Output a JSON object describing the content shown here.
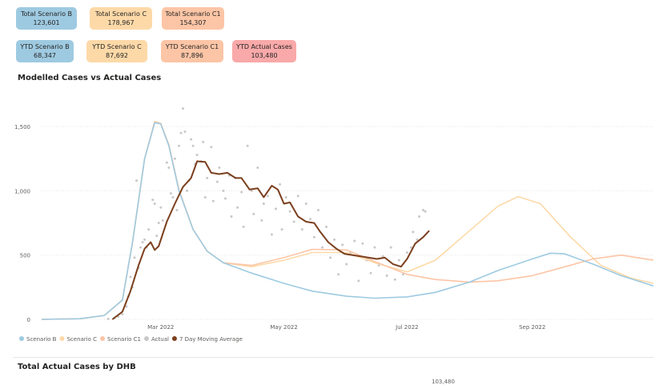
{
  "cards": [
    {
      "label": "Total Scenario B",
      "value": "123,601",
      "color": "#9ecae1",
      "row": 0
    },
    {
      "label": "Total Scenario C",
      "value": "178,967",
      "color": "#fdd9a8",
      "row": 0
    },
    {
      "label": "Total Scenario C1",
      "value": "154,307",
      "color": "#fcc5a6",
      "row": 0
    },
    {
      "label": "YTD Scenario B",
      "value": "68,347",
      "color": "#9ecae1",
      "row": 1
    },
    {
      "label": "YTD Scenario C",
      "value": "87,692",
      "color": "#fdd9a8",
      "row": 1
    },
    {
      "label": "YTD Scenario C1",
      "value": "87,896",
      "color": "#fcc5a6",
      "row": 1
    },
    {
      "label": "YTD Actual Cases",
      "value": "103,480",
      "color": "#f9a9a9",
      "row": 1
    }
  ],
  "chart_title": "Modelled Cases vs Actual Cases",
  "bottom_title": "Total Actual Cases by DHB",
  "bottom_value": "103,480",
  "chart_data": {
    "type": "line",
    "xlabel": "",
    "ylabel": "",
    "xlim": [
      "2022-01-01",
      "2022-10-31"
    ],
    "ylim": [
      0,
      1700
    ],
    "yticks": [
      0,
      500,
      1000,
      1500
    ],
    "ytick_labels": [
      "0",
      "500",
      "1,000",
      "1,500"
    ],
    "xticks": [
      "2022-03-01",
      "2022-05-01",
      "2022-07-01",
      "2022-09-01"
    ],
    "xtick_labels": [
      "Mar 2022",
      "May 2022",
      "Jul 2022",
      "Sep 2022"
    ],
    "legend_position": "bottom-left",
    "series": [
      {
        "name": "Scenario B",
        "color": "#9ecae1",
        "style": "line",
        "points": [
          [
            "2022-01-01",
            0
          ],
          [
            "2022-01-20",
            5
          ],
          [
            "2022-02-01",
            30
          ],
          [
            "2022-02-10",
            150
          ],
          [
            "2022-02-15",
            600
          ],
          [
            "2022-02-21",
            1250
          ],
          [
            "2022-02-26",
            1530
          ],
          [
            "2022-03-01",
            1520
          ],
          [
            "2022-03-05",
            1350
          ],
          [
            "2022-03-10",
            1000
          ],
          [
            "2022-03-17",
            700
          ],
          [
            "2022-03-24",
            530
          ],
          [
            "2022-04-01",
            440
          ],
          [
            "2022-04-15",
            360
          ],
          [
            "2022-05-01",
            280
          ],
          [
            "2022-05-15",
            220
          ],
          [
            "2022-06-01",
            180
          ],
          [
            "2022-06-15",
            165
          ],
          [
            "2022-07-01",
            175
          ],
          [
            "2022-07-15",
            210
          ],
          [
            "2022-08-01",
            290
          ],
          [
            "2022-08-15",
            380
          ],
          [
            "2022-09-01",
            470
          ],
          [
            "2022-09-10",
            515
          ],
          [
            "2022-09-17",
            510
          ],
          [
            "2022-10-01",
            430
          ],
          [
            "2022-10-15",
            340
          ],
          [
            "2022-10-31",
            260
          ]
        ]
      },
      {
        "name": "Scenario C",
        "color": "#fdd9a8",
        "style": "line",
        "points": [
          [
            "2022-01-01",
            0
          ],
          [
            "2022-01-20",
            5
          ],
          [
            "2022-02-01",
            30
          ],
          [
            "2022-02-10",
            150
          ],
          [
            "2022-02-15",
            600
          ],
          [
            "2022-02-21",
            1250
          ],
          [
            "2022-02-26",
            1540
          ],
          [
            "2022-03-01",
            1525
          ],
          [
            "2022-03-05",
            1360
          ],
          [
            "2022-03-10",
            1010
          ],
          [
            "2022-03-17",
            700
          ],
          [
            "2022-03-24",
            530
          ],
          [
            "2022-04-01",
            440
          ],
          [
            "2022-04-15",
            410
          ],
          [
            "2022-05-01",
            460
          ],
          [
            "2022-05-15",
            520
          ],
          [
            "2022-06-01",
            520
          ],
          [
            "2022-06-15",
            440
          ],
          [
            "2022-07-01",
            370
          ],
          [
            "2022-07-15",
            460
          ],
          [
            "2022-08-01",
            690
          ],
          [
            "2022-08-15",
            880
          ],
          [
            "2022-08-25",
            955
          ],
          [
            "2022-09-05",
            900
          ],
          [
            "2022-09-20",
            640
          ],
          [
            "2022-10-05",
            420
          ],
          [
            "2022-10-20",
            320
          ],
          [
            "2022-10-31",
            280
          ]
        ]
      },
      {
        "name": "Scenario C1",
        "color": "#fcc5a6",
        "style": "line",
        "points": [
          [
            "2022-01-01",
            0
          ],
          [
            "2022-01-20",
            5
          ],
          [
            "2022-02-01",
            30
          ],
          [
            "2022-02-10",
            150
          ],
          [
            "2022-02-15",
            600
          ],
          [
            "2022-02-21",
            1250
          ],
          [
            "2022-02-26",
            1535
          ],
          [
            "2022-03-01",
            1522
          ],
          [
            "2022-03-05",
            1355
          ],
          [
            "2022-03-10",
            1005
          ],
          [
            "2022-03-17",
            700
          ],
          [
            "2022-03-24",
            530
          ],
          [
            "2022-04-01",
            440
          ],
          [
            "2022-04-15",
            420
          ],
          [
            "2022-05-01",
            480
          ],
          [
            "2022-05-15",
            545
          ],
          [
            "2022-06-01",
            540
          ],
          [
            "2022-06-15",
            450
          ],
          [
            "2022-07-01",
            350
          ],
          [
            "2022-07-15",
            310
          ],
          [
            "2022-08-01",
            290
          ],
          [
            "2022-08-15",
            300
          ],
          [
            "2022-09-01",
            340
          ],
          [
            "2022-09-15",
            400
          ],
          [
            "2022-10-01",
            470
          ],
          [
            "2022-10-15",
            500
          ],
          [
            "2022-10-31",
            460
          ]
        ]
      },
      {
        "name": "7 Day Moving Average",
        "color": "#7b3f1e",
        "style": "line",
        "points": [
          [
            "2022-02-05",
            0
          ],
          [
            "2022-02-10",
            60
          ],
          [
            "2022-02-14",
            220
          ],
          [
            "2022-02-18",
            420
          ],
          [
            "2022-02-21",
            550
          ],
          [
            "2022-02-24",
            600
          ],
          [
            "2022-02-26",
            540
          ],
          [
            "2022-02-28",
            570
          ],
          [
            "2022-03-04",
            760
          ],
          [
            "2022-03-08",
            900
          ],
          [
            "2022-03-12",
            1030
          ],
          [
            "2022-03-16",
            1100
          ],
          [
            "2022-03-19",
            1230
          ],
          [
            "2022-03-23",
            1225
          ],
          [
            "2022-03-26",
            1140
          ],
          [
            "2022-03-30",
            1130
          ],
          [
            "2022-04-03",
            1140
          ],
          [
            "2022-04-07",
            1100
          ],
          [
            "2022-04-10",
            1100
          ],
          [
            "2022-04-14",
            1010
          ],
          [
            "2022-04-18",
            1020
          ],
          [
            "2022-04-21",
            950
          ],
          [
            "2022-04-25",
            1040
          ],
          [
            "2022-04-28",
            1010
          ],
          [
            "2022-05-01",
            900
          ],
          [
            "2022-05-04",
            910
          ],
          [
            "2022-05-08",
            800
          ],
          [
            "2022-05-12",
            760
          ],
          [
            "2022-05-16",
            750
          ],
          [
            "2022-05-19",
            680
          ],
          [
            "2022-05-23",
            600
          ],
          [
            "2022-05-27",
            550
          ],
          [
            "2022-05-31",
            510
          ],
          [
            "2022-06-04",
            500
          ],
          [
            "2022-06-08",
            490
          ],
          [
            "2022-06-12",
            480
          ],
          [
            "2022-06-16",
            470
          ],
          [
            "2022-06-20",
            480
          ],
          [
            "2022-06-24",
            430
          ],
          [
            "2022-06-28",
            410
          ],
          [
            "2022-07-01",
            470
          ],
          [
            "2022-07-05",
            590
          ],
          [
            "2022-07-09",
            640
          ],
          [
            "2022-07-12",
            690
          ]
        ]
      },
      {
        "name": "Actual",
        "color": "#c8c8c8",
        "style": "scatter",
        "points": [
          [
            "2022-02-03",
            4
          ],
          [
            "2022-02-06",
            10
          ],
          [
            "2022-02-08",
            20
          ],
          [
            "2022-02-10",
            40
          ],
          [
            "2022-02-12",
            100
          ],
          [
            "2022-02-13",
            180
          ],
          [
            "2022-02-14",
            330
          ],
          [
            "2022-02-15",
            250
          ],
          [
            "2022-02-16",
            480
          ],
          [
            "2022-02-17",
            1080
          ],
          [
            "2022-02-18",
            400
          ],
          [
            "2022-02-19",
            560
          ],
          [
            "2022-02-20",
            600
          ],
          [
            "2022-02-21",
            620
          ],
          [
            "2022-02-22",
            560
          ],
          [
            "2022-02-23",
            700
          ],
          [
            "2022-02-25",
            930
          ],
          [
            "2022-02-26",
            900
          ],
          [
            "2022-02-27",
            650
          ],
          [
            "2022-02-28",
            750
          ],
          [
            "2022-03-01",
            870
          ],
          [
            "2022-03-02",
            770
          ],
          [
            "2022-03-04",
            1220
          ],
          [
            "2022-03-05",
            1180
          ],
          [
            "2022-03-06",
            980
          ],
          [
            "2022-03-07",
            950
          ],
          [
            "2022-03-08",
            1250
          ],
          [
            "2022-03-09",
            850
          ],
          [
            "2022-03-10",
            1350
          ],
          [
            "2022-03-11",
            1450
          ],
          [
            "2022-03-12",
            1640
          ],
          [
            "2022-03-13",
            1460
          ],
          [
            "2022-03-14",
            1000
          ],
          [
            "2022-03-15",
            1080
          ],
          [
            "2022-03-16",
            1400
          ],
          [
            "2022-03-17",
            1350
          ],
          [
            "2022-03-18",
            1210
          ],
          [
            "2022-03-19",
            1280
          ],
          [
            "2022-03-21",
            1230
          ],
          [
            "2022-03-22",
            1380
          ],
          [
            "2022-03-23",
            950
          ],
          [
            "2022-03-24",
            1100
          ],
          [
            "2022-03-26",
            1340
          ],
          [
            "2022-03-27",
            920
          ],
          [
            "2022-03-29",
            1070
          ],
          [
            "2022-03-30",
            1180
          ],
          [
            "2022-04-01",
            1000
          ],
          [
            "2022-04-02",
            940
          ],
          [
            "2022-04-04",
            1120
          ],
          [
            "2022-04-05",
            800
          ],
          [
            "2022-04-07",
            1100
          ],
          [
            "2022-04-08",
            870
          ],
          [
            "2022-04-10",
            990
          ],
          [
            "2022-04-11",
            720
          ],
          [
            "2022-04-13",
            1350
          ],
          [
            "2022-04-15",
            1000
          ],
          [
            "2022-04-16",
            820
          ],
          [
            "2022-04-18",
            1180
          ],
          [
            "2022-04-20",
            770
          ],
          [
            "2022-04-21",
            900
          ],
          [
            "2022-04-23",
            960
          ],
          [
            "2022-04-25",
            660
          ],
          [
            "2022-04-27",
            860
          ],
          [
            "2022-04-29",
            1050
          ],
          [
            "2022-04-30",
            700
          ],
          [
            "2022-05-02",
            950
          ],
          [
            "2022-05-04",
            840
          ],
          [
            "2022-05-06",
            760
          ],
          [
            "2022-05-08",
            960
          ],
          [
            "2022-05-10",
            700
          ],
          [
            "2022-05-12",
            900
          ],
          [
            "2022-05-14",
            780
          ],
          [
            "2022-05-16",
            640
          ],
          [
            "2022-05-18",
            850
          ],
          [
            "2022-05-20",
            560
          ],
          [
            "2022-05-22",
            720
          ],
          [
            "2022-05-24",
            480
          ],
          [
            "2022-05-26",
            620
          ],
          [
            "2022-05-28",
            350
          ],
          [
            "2022-05-30",
            580
          ],
          [
            "2022-06-01",
            430
          ],
          [
            "2022-06-03",
            520
          ],
          [
            "2022-06-05",
            610
          ],
          [
            "2022-06-07",
            300
          ],
          [
            "2022-06-09",
            590
          ],
          [
            "2022-06-11",
            460
          ],
          [
            "2022-06-13",
            360
          ],
          [
            "2022-06-15",
            560
          ],
          [
            "2022-06-17",
            420
          ],
          [
            "2022-06-19",
            490
          ],
          [
            "2022-06-21",
            340
          ],
          [
            "2022-06-23",
            560
          ],
          [
            "2022-06-25",
            310
          ],
          [
            "2022-06-27",
            460
          ],
          [
            "2022-06-29",
            350
          ],
          [
            "2022-07-01",
            520
          ],
          [
            "2022-07-03",
            560
          ],
          [
            "2022-07-04",
            680
          ],
          [
            "2022-07-06",
            620
          ],
          [
            "2022-07-07",
            800
          ],
          [
            "2022-07-09",
            850
          ],
          [
            "2022-07-10",
            840
          ]
        ]
      }
    ]
  }
}
